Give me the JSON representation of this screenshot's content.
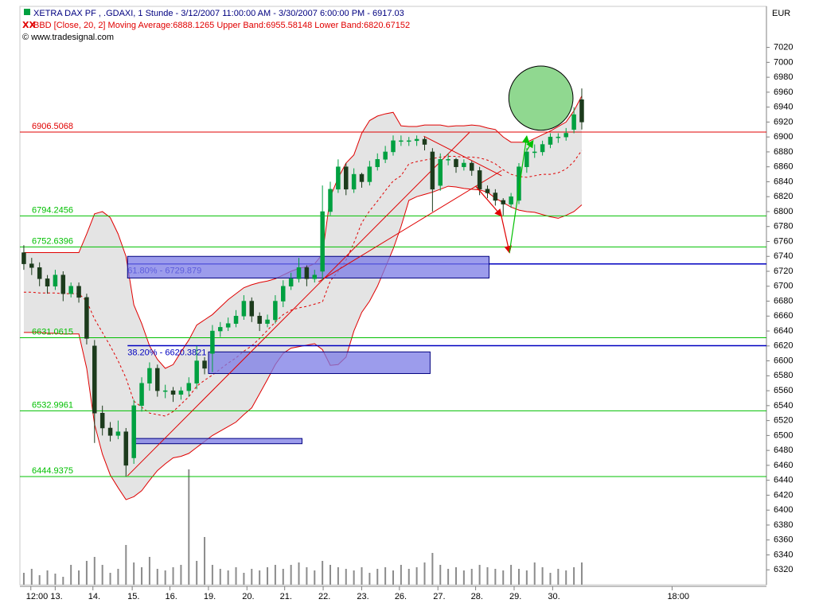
{
  "chart_data": {
    "type": "candlestick",
    "title": "XETRA DAX PF     , .GDAXI, 1 Stunde - 3/12/2007 11:00:00 AM - 3/30/2007 6:00:00 PM - 6917.03",
    "subtitle": "BBD [Close, 20, 2] Moving Average:6888.1265 Upper Band:6955.58148 Lower Band:6820.67152",
    "source": "© www.tradesignal.com",
    "currency": "EUR",
    "xlim": [
      0,
      95
    ],
    "xticks": [
      {
        "value": 2,
        "label": "12:00"
      },
      {
        "value": 5.1,
        "label": "13."
      },
      {
        "value": 9.9,
        "label": "14."
      },
      {
        "value": 14.9,
        "label": "15."
      },
      {
        "value": 19.7,
        "label": "16."
      },
      {
        "value": 24.6,
        "label": "19."
      },
      {
        "value": 29.5,
        "label": "20."
      },
      {
        "value": 34.3,
        "label": "21."
      },
      {
        "value": 39.2,
        "label": "22."
      },
      {
        "value": 44.1,
        "label": "23."
      },
      {
        "value": 48.9,
        "label": "26."
      },
      {
        "value": 53.8,
        "label": "27."
      },
      {
        "value": 58.6,
        "label": "28."
      },
      {
        "value": 63.5,
        "label": "29."
      },
      {
        "value": 68.4,
        "label": "30."
      },
      {
        "value": 83.6,
        "label": "18:00"
      }
    ],
    "ylim": [
      6300,
      7075
    ],
    "yticks": [
      6320,
      6340,
      6360,
      6380,
      6400,
      6420,
      6440,
      6460,
      6480,
      6500,
      6520,
      6540,
      6560,
      6580,
      6600,
      6620,
      6640,
      6660,
      6680,
      6700,
      6720,
      6740,
      6760,
      6780,
      6800,
      6820,
      6840,
      6860,
      6880,
      6900,
      6920,
      6940,
      6960,
      6980,
      7000,
      7020
    ],
    "up_color": "#00a040",
    "down_color": "#1c3b1c",
    "open": [
      6745,
      6730,
      6725,
      6710,
      6700,
      6715,
      6690,
      6700,
      6685,
      6620,
      6530,
      6510,
      6500,
      6505,
      6470,
      6540,
      6570,
      6590,
      6560,
      6560,
      6555,
      6560,
      6570,
      6600,
      6610,
      6640,
      6645,
      6650,
      6660,
      6680,
      6660,
      6650,
      6655,
      6680,
      6700,
      6710,
      6725,
      6710,
      6720,
      6800,
      6830,
      6860,
      6830,
      6850,
      6840,
      6860,
      6870,
      6880,
      6895,
      6895,
      6895,
      6897,
      6880,
      6835,
      6870,
      6870,
      6860,
      6865,
      6855,
      6830,
      6825,
      6815,
      6810,
      6815,
      6860,
      6880,
      6880,
      6890,
      6900,
      6900,
      6910,
      6950
    ],
    "high": [
      6755,
      6738,
      6732,
      6715,
      6722,
      6720,
      6705,
      6705,
      6690,
      6628,
      6540,
      6518,
      6520,
      6510,
      6548,
      6578,
      6598,
      6595,
      6568,
      6565,
      6565,
      6578,
      6620,
      6605,
      6648,
      6652,
      6658,
      6668,
      6688,
      6685,
      6665,
      6662,
      6688,
      6708,
      6718,
      6738,
      6728,
      6722,
      6835,
      6840,
      6870,
      6865,
      6858,
      6852,
      6868,
      6878,
      6888,
      6902,
      6902,
      6900,
      6902,
      6900,
      6885,
      6878,
      6878,
      6872,
      6870,
      6868,
      6860,
      6835,
      6830,
      6818,
      6825,
      6865,
      6885,
      6890,
      6895,
      6905,
      6905,
      6912,
      6940,
      6965
    ],
    "low": [
      6722,
      6715,
      6700,
      6690,
      6695,
      6680,
      6685,
      6678,
      6622,
      6490,
      6500,
      6492,
      6495,
      6445,
      6462,
      6532,
      6560,
      6552,
      6550,
      6545,
      6548,
      6552,
      6562,
      6582,
      6585,
      6632,
      6640,
      6645,
      6655,
      6652,
      6640,
      6645,
      6650,
      6672,
      6695,
      6705,
      6700,
      6705,
      6708,
      6795,
      6825,
      6822,
      6825,
      6832,
      6835,
      6855,
      6865,
      6875,
      6888,
      6888,
      6888,
      6882,
      6800,
      6828,
      6862,
      6852,
      6855,
      6848,
      6822,
      6818,
      6808,
      6795,
      6805,
      6810,
      6852,
      6872,
      6875,
      6885,
      6892,
      6895,
      6905,
      6910
    ],
    "close": [
      6730,
      6725,
      6710,
      6700,
      6715,
      6690,
      6700,
      6685,
      6630,
      6530,
      6510,
      6500,
      6505,
      6460,
      6540,
      6570,
      6590,
      6560,
      6560,
      6555,
      6560,
      6570,
      6600,
      6590,
      6640,
      6645,
      6650,
      6660,
      6680,
      6660,
      6650,
      6655,
      6680,
      6700,
      6710,
      6725,
      6710,
      6715,
      6800,
      6830,
      6860,
      6830,
      6850,
      6840,
      6860,
      6870,
      6880,
      6895,
      6895,
      6895,
      6897,
      6890,
      6830,
      6870,
      6870,
      6860,
      6865,
      6855,
      6830,
      6825,
      6815,
      6810,
      6820,
      6860,
      6880,
      6880,
      6890,
      6900,
      6900,
      6905,
      6930,
      6920
    ],
    "bands": {
      "color": "#e00000",
      "fill": "#e4e4e4",
      "upper": [
        6745,
        6745,
        6745,
        6745,
        6745,
        6745,
        6745,
        6745,
        6770,
        6797,
        6800,
        6792,
        6770,
        6740,
        6675,
        6650,
        6620,
        6602,
        6590,
        6595,
        6612,
        6628,
        6648,
        6655,
        6662,
        6672,
        6682,
        6690,
        6698,
        6702,
        6705,
        6707,
        6710,
        6715,
        6720,
        6724,
        6726,
        6730,
        6743,
        6820,
        6845,
        6865,
        6876,
        6905,
        6922,
        6928,
        6931,
        6933,
        6915,
        6914,
        6914,
        6916,
        6916,
        6916,
        6914,
        6915,
        6915,
        6916,
        6915,
        6912,
        6910,
        6900,
        6893,
        6893,
        6893,
        6898,
        6903,
        6908,
        6914,
        6920,
        6935,
        6955
      ],
      "middle": [
        6692,
        6692,
        6691,
        6691,
        6691,
        6690,
        6690,
        6690,
        6680,
        6656,
        6638,
        6620,
        6600,
        6577,
        6546,
        6538,
        6530,
        6528,
        6526,
        6532,
        6542,
        6552,
        6566,
        6574,
        6581,
        6589,
        6597,
        6604,
        6613,
        6620,
        6630,
        6641,
        6652,
        6662,
        6668,
        6671,
        6673,
        6676,
        6679,
        6707,
        6720,
        6735,
        6758,
        6785,
        6801,
        6814,
        6828,
        6841,
        6848,
        6864,
        6867,
        6869,
        6871,
        6873,
        6874,
        6874,
        6873,
        6873,
        6872,
        6869,
        6864,
        6856,
        6850,
        6847,
        6846,
        6848,
        6850,
        6850,
        6852,
        6857,
        6867,
        6882
      ],
      "lower": [
        6638,
        6638,
        6638,
        6637,
        6637,
        6636,
        6636,
        6636,
        6590,
        6515,
        6475,
        6447,
        6430,
        6414,
        6418,
        6426,
        6440,
        6453,
        6462,
        6470,
        6472,
        6476,
        6484,
        6492,
        6500,
        6506,
        6512,
        6518,
        6528,
        6537,
        6556,
        6575,
        6595,
        6610,
        6617,
        6619,
        6621,
        6623,
        6615,
        6594,
        6595,
        6605,
        6640,
        6665,
        6680,
        6700,
        6725,
        6750,
        6780,
        6815,
        6820,
        6823,
        6826,
        6830,
        6834,
        6833,
        6831,
        6830,
        6829,
        6826,
        6818,
        6812,
        6806,
        6802,
        6800,
        6799,
        6796,
        6793,
        6791,
        6795,
        6800,
        6809
      ]
    },
    "volume": {
      "color": "#8c8c8c",
      "values": [
        15,
        20,
        12,
        18,
        14,
        10,
        25,
        18,
        30,
        35,
        25,
        15,
        20,
        50,
        28,
        22,
        35,
        20,
        18,
        22,
        25,
        145,
        30,
        60,
        25,
        20,
        18,
        22,
        15,
        20,
        18,
        22,
        25,
        20,
        25,
        28,
        22,
        18,
        30,
        25,
        22,
        20,
        18,
        22,
        15,
        20,
        22,
        18,
        25,
        20,
        22,
        28,
        40,
        25,
        20,
        22,
        18,
        20,
        25,
        22,
        20,
        18,
        25,
        20,
        18,
        28,
        22,
        15,
        20,
        18,
        22,
        28
      ]
    },
    "levels": [
      {
        "value": 6906.5068,
        "color": "#e00000"
      },
      {
        "value": 6794.2456,
        "color": "#00c000"
      },
      {
        "value": 6752.6396,
        "color": "#00c000"
      },
      {
        "value": 6631.0615,
        "color": "#00c000"
      },
      {
        "value": 6532.9961,
        "color": "#00c000"
      },
      {
        "value": 6444.9375,
        "color": "#00c000"
      }
    ],
    "fib": [
      {
        "value": 6729.879,
        "label": "61.80% - 6729.879",
        "start": 13.7,
        "color": "#0000c0"
      },
      {
        "value": 6620.3821,
        "label": "38.20% - 6620.3821",
        "start": 13.7,
        "color": "#0000c0"
      }
    ],
    "boxes": [
      {
        "x0": 13.7,
        "x1": 59.7,
        "y0": 6711,
        "y1": 6740
      },
      {
        "x0": 24.0,
        "x1": 52.2,
        "y0": 6583,
        "y1": 6612
      },
      {
        "x0": 14.3,
        "x1": 35.9,
        "y0": 6489,
        "y1": 6496
      }
    ],
    "box_color": "#7b7be6",
    "circle": {
      "x": 66.3,
      "y": 6952,
      "r": 43,
      "color": "#90d890"
    },
    "lines": [
      {
        "x": [
          13.7,
          57.2
        ],
        "y": [
          6446,
          6906
        ],
        "color": "#e00000"
      },
      {
        "x": [
          38.0,
          61.3
        ],
        "y": [
          6706,
          6855
        ],
        "color": "#e00000"
      },
      {
        "x": [
          51.4,
          61.3
        ],
        "y": [
          6901,
          6848
        ],
        "color": "#e00000"
      }
    ],
    "arrows": [
      {
        "x": [
          58.0,
          61.3
        ],
        "y": [
          6834,
          6794
        ],
        "color": "#e00000"
      },
      {
        "x": [
          61.1,
          62.3
        ],
        "y": [
          6802,
          6745
        ],
        "color": "#e00000"
      },
      {
        "x": [
          62.3,
          64.5
        ],
        "y": [
          6745,
          6901
        ],
        "color": "#00c000"
      },
      {
        "x": [
          64.5,
          65.3
        ],
        "y": [
          6882,
          6895
        ],
        "color": "#00c000"
      }
    ]
  }
}
